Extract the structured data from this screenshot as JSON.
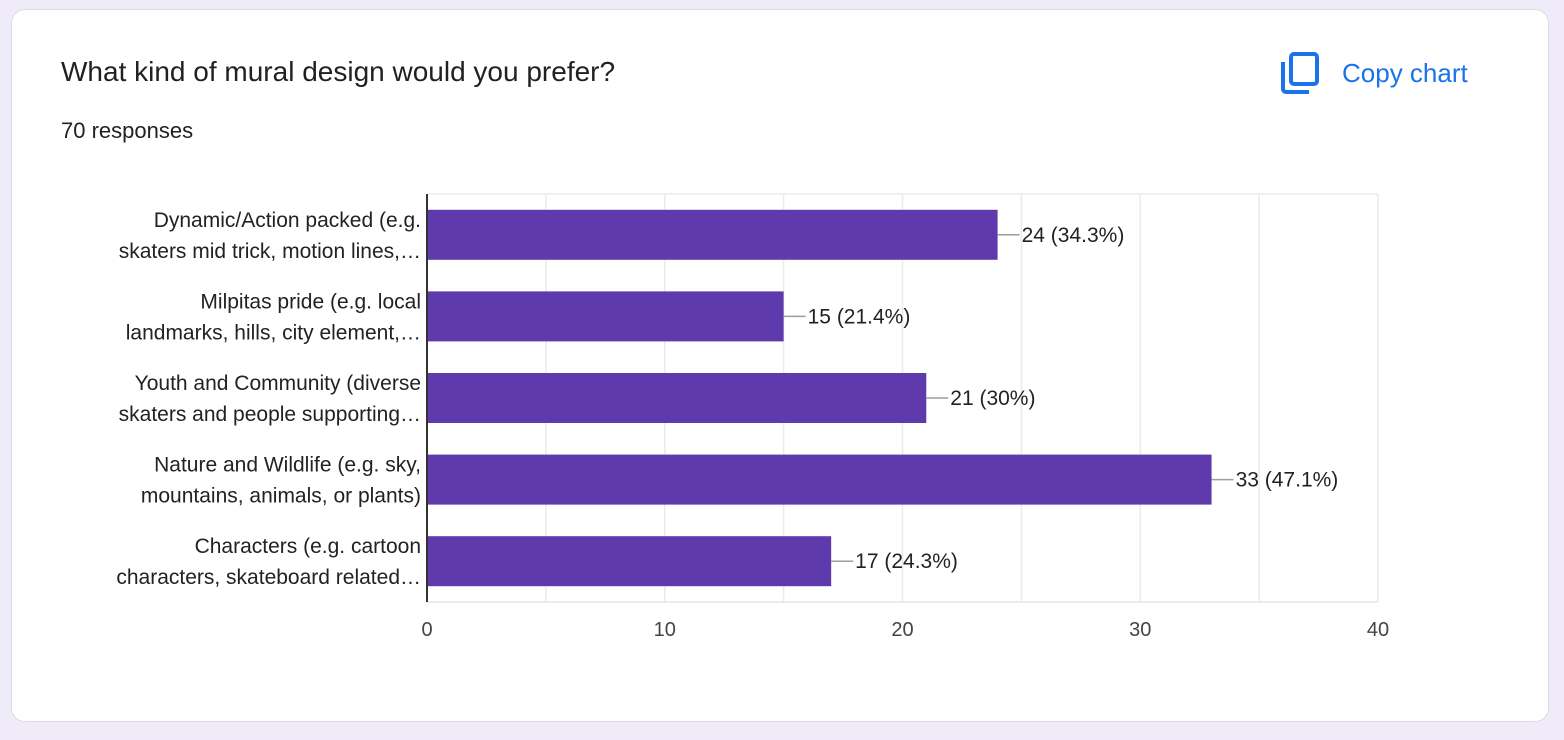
{
  "header": {
    "title": "What kind of mural design would you prefer?",
    "responses": "70 responses",
    "copy_label": "Copy chart",
    "copy_icon": "copy-icon"
  },
  "colors": {
    "bar": "#5e3aac",
    "accent": "#1a73e8",
    "background": "#f0ebf8"
  },
  "chart_data": {
    "type": "bar",
    "orientation": "horizontal",
    "categories": [
      [
        "Dynamic/Action packed (e.g.",
        "skaters mid trick, motion lines,…"
      ],
      [
        "Milpitas pride (e.g. local",
        "landmarks, hills, city element,…"
      ],
      [
        "Youth and Community (diverse",
        "skaters and people supporting…"
      ],
      [
        "Nature and Wildlife (e.g. sky,",
        "mountains, animals, or plants)"
      ],
      [
        "Characters (e.g. cartoon",
        "characters, skateboard related…"
      ]
    ],
    "values": [
      24,
      15,
      21,
      33,
      17
    ],
    "value_labels": [
      "24 (34.3%)",
      "15 (21.4%)",
      "21 (30%)",
      "33 (47.1%)",
      "17 (24.3%)"
    ],
    "xlim": [
      0,
      40
    ],
    "xticks": [
      0,
      10,
      20,
      30,
      40
    ],
    "grid": true
  }
}
